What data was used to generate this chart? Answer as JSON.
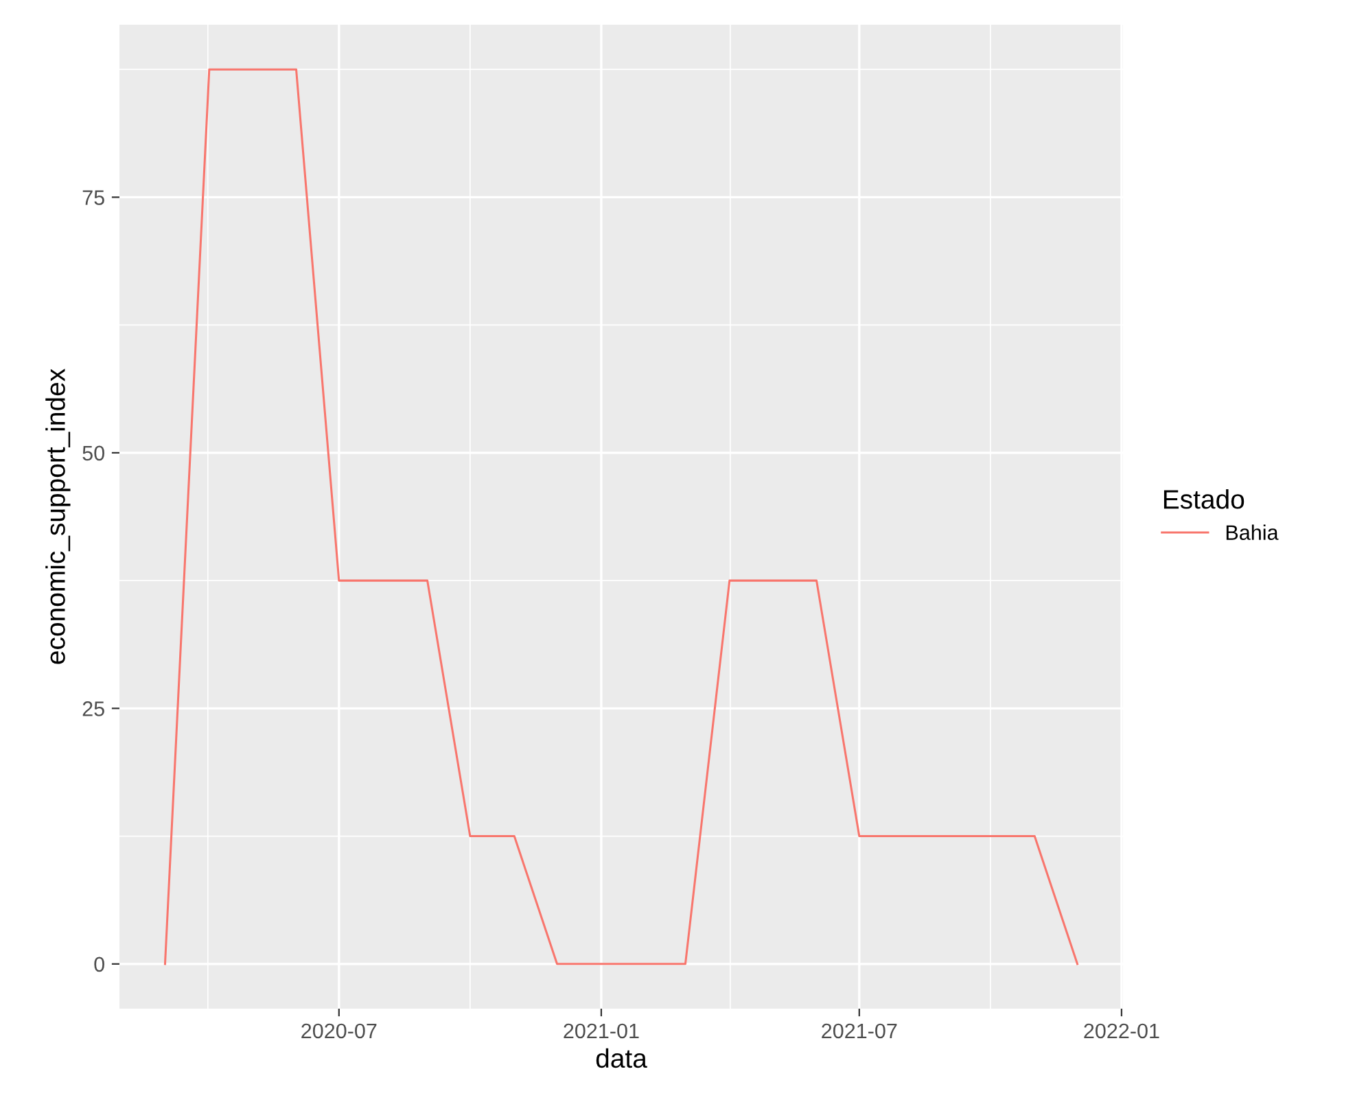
{
  "chart_data": {
    "type": "line",
    "xlabel": "data",
    "ylabel": "economic_support_index",
    "legend_title": "Estado",
    "legend": "right",
    "grid": true,
    "x": [
      "2020-03-01",
      "2020-04-01",
      "2020-06-01",
      "2020-07-01",
      "2020-09-01",
      "2020-10-01",
      "2020-11-01",
      "2020-12-01",
      "2021-03-01",
      "2021-04-01",
      "2021-06-01",
      "2021-07-01",
      "2021-11-01",
      "2021-12-01"
    ],
    "series": [
      {
        "name": "Bahia",
        "color": "#f8766d",
        "values": [
          0,
          87.5,
          87.5,
          37.5,
          37.5,
          12.5,
          12.5,
          0,
          0,
          37.5,
          37.5,
          12.5,
          12.5,
          0
        ]
      }
    ],
    "xlim": [
      "2020-01-29",
      "2022-01-02"
    ],
    "ylim": [
      -4.375,
      91.875
    ],
    "xticks": [
      "2020-07",
      "2021-01",
      "2021-07",
      "2022-01"
    ],
    "yticks": [
      0,
      25,
      50,
      75
    ]
  }
}
